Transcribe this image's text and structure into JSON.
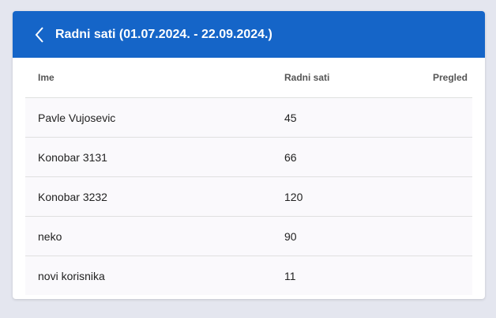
{
  "header": {
    "title": "Radni sati (01.07.2024. - 22.09.2024.)"
  },
  "table": {
    "columns": [
      "Ime",
      "Radni sati",
      "Pregled"
    ],
    "rows": [
      [
        "Pavle Vujosevic",
        "45"
      ],
      [
        "Konobar 3131",
        "66"
      ],
      [
        "Konobar 3232",
        "120"
      ],
      [
        "neko",
        "90"
      ],
      [
        "novi korisnika",
        "11"
      ]
    ]
  }
}
